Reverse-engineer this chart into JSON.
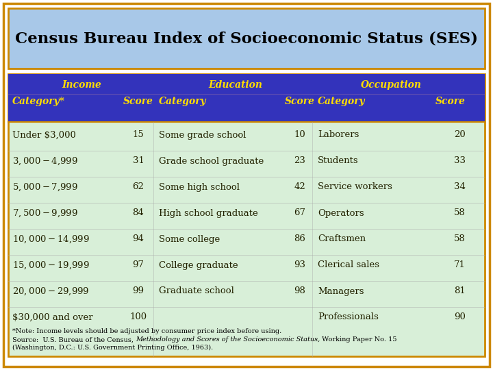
{
  "title": "Census Bureau Index of Socioeconomic Status (SES)",
  "title_bg": "#a8c8e8",
  "title_color": "#000000",
  "outer_bg": "#ffffff",
  "table_bg": "#d8efd8",
  "header_bg": "#3333bb",
  "header_text_color": "#ffdd00",
  "body_text_color": "#222200",
  "border_color": "#cc8800",
  "rows": [
    [
      "Under $3,000",
      "15",
      "Some grade school",
      "10",
      "Laborers",
      "20"
    ],
    [
      "$3,000-$4,999",
      "31",
      "Grade school graduate",
      "23",
      "Students",
      "33"
    ],
    [
      "$5,000-$7,999",
      "62",
      "Some high school",
      "42",
      "Service workers",
      "34"
    ],
    [
      "$7,500-$9,999",
      "84",
      "High school graduate",
      "67",
      "Operators",
      "58"
    ],
    [
      "$10,000-$14,999",
      "94",
      "Some college",
      "86",
      "Craftsmen",
      "58"
    ],
    [
      "$15,000-$19,999",
      "97",
      "College graduate",
      "93",
      "Clerical sales",
      "71"
    ],
    [
      "$20,000-$29,999",
      "99",
      "Graduate school",
      "98",
      "Managers",
      "81"
    ],
    [
      "$30,000 and over",
      "100",
      "",
      "",
      "Professionals",
      "90"
    ]
  ],
  "fn1": "*Note: Income levels should be adjusted by consumer price index before using.",
  "fn2_pre": "Source:  U.S. Bureau of the Census, ",
  "fn2_italic": "Methodology and Scores of the Socioeconomic Status,",
  "fn2_post": " Working Paper No. 15",
  "fn3": "(Washington, D.C.: U.S. Government Printing Office, 1963)."
}
